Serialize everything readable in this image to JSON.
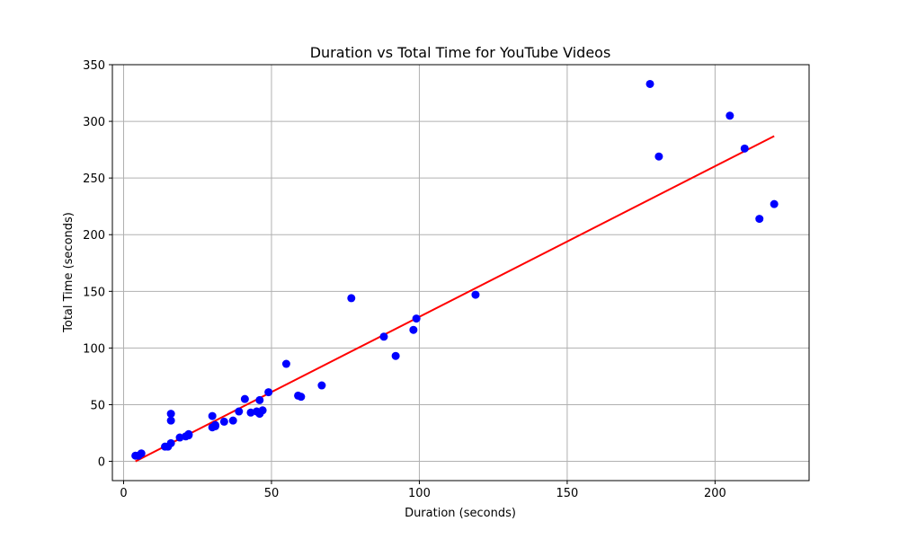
{
  "chart_data": {
    "type": "scatter",
    "title": "Duration vs Total Time for YouTube Videos",
    "xlabel": "Duration (seconds)",
    "ylabel": "Total Time (seconds)",
    "xlim": [
      -3.8,
      231.8
    ],
    "ylim": [
      -17,
      350
    ],
    "xticks": [
      0,
      50,
      100,
      150,
      200
    ],
    "yticks": [
      0,
      50,
      100,
      150,
      200,
      250,
      300,
      350
    ],
    "grid": true,
    "colors": {
      "points": "#0000ff",
      "trend": "#ff0000",
      "grid": "#b0b0b0"
    },
    "series": [
      {
        "kind": "points",
        "x": [
          4,
          5,
          6,
          14,
          15,
          16,
          16,
          16,
          19,
          21,
          22,
          22,
          30,
          30,
          31,
          31,
          34,
          37,
          39,
          41,
          43,
          45,
          46,
          46,
          47,
          49,
          55,
          59,
          60,
          67,
          77,
          88,
          92,
          98,
          99,
          119,
          178,
          181,
          205,
          210,
          215,
          220
        ],
        "y": [
          5,
          5,
          7,
          13,
          13,
          16,
          36,
          42,
          21,
          22,
          23,
          24,
          30,
          40,
          31,
          32,
          35,
          36,
          44,
          55,
          43,
          44,
          42,
          54,
          45,
          61,
          86,
          58,
          57,
          67,
          144,
          110,
          93,
          116,
          126,
          147,
          333,
          269,
          305,
          276,
          214,
          227
        ]
      },
      {
        "kind": "trend",
        "x": [
          4,
          220
        ],
        "y": [
          0,
          287
        ]
      }
    ]
  }
}
